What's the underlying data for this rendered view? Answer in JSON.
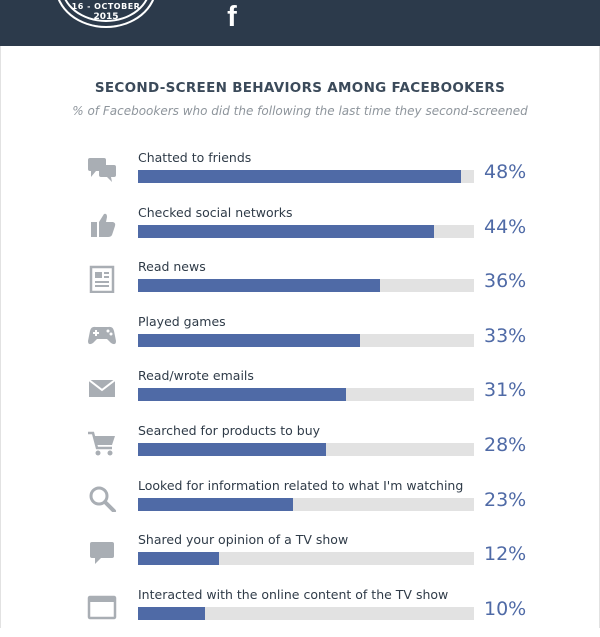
{
  "header": {
    "badge_top": "16 - OCTOBER",
    "badge_year": "2015",
    "logo_text": "f"
  },
  "chart_data": {
    "type": "bar",
    "title": "SECOND-SCREEN BEHAVIORS AMONG FACEBOOKERS",
    "subtitle": "% of Facebookers who did the following the last time they second-screened",
    "categories": [
      "Chatted to friends",
      "Checked social networks",
      "Read news",
      "Played games",
      "Read/wrote emails",
      "Searched for products to buy",
      "Looked for information related to what I'm watching",
      "Shared your opinion of a TV show",
      "Interacted with the online content of the TV show"
    ],
    "values": [
      48,
      44,
      36,
      33,
      31,
      28,
      23,
      12,
      10
    ],
    "value_labels": [
      "48%",
      "44%",
      "36%",
      "33%",
      "31%",
      "28%",
      "23%",
      "12%",
      "10%"
    ],
    "icons": [
      "chat-bubbles-icon",
      "thumbs-up-icon",
      "newspaper-icon",
      "gamepad-icon",
      "envelope-icon",
      "shopping-cart-icon",
      "magnifier-icon",
      "speech-bubble-icon",
      "browser-window-icon"
    ],
    "xlim": [
      0,
      50
    ],
    "orientation": "horizontal",
    "bar_color": "#4f6aa6",
    "track_color": "#e2e2e2"
  }
}
